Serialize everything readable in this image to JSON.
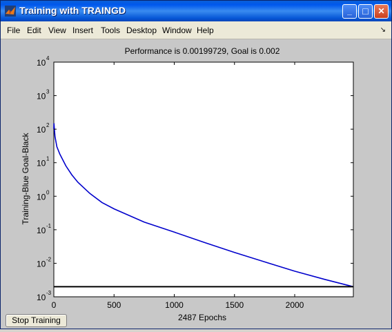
{
  "window": {
    "title": "Training with TRAINGD",
    "minimize_label": "_",
    "maximize_label": "□",
    "close_label": "✕"
  },
  "menu": {
    "items": [
      "File",
      "Edit",
      "View",
      "Insert",
      "Tools",
      "Desktop",
      "Window",
      "Help"
    ],
    "dock_label": "↘"
  },
  "chart": {
    "title": "Performance is 0.00199729, Goal is 0.002",
    "xlabel": "2487 Epochs",
    "ylabel": "Training-Blue  Goal-Black",
    "x_ticks": [
      "0",
      "500",
      "1000",
      "1500",
      "2000"
    ],
    "y_tick_bases": [
      "10",
      "10",
      "10",
      "10",
      "10",
      "10",
      "10",
      "10"
    ],
    "y_tick_exps": [
      "4",
      "3",
      "2",
      "1",
      "0",
      "-1",
      "-2",
      "-3"
    ]
  },
  "chart_data": {
    "type": "line",
    "title": "Performance is 0.00199729, Goal is 0.002",
    "xlabel": "2487 Epochs",
    "ylabel": "Training-Blue  Goal-Black",
    "xlim": [
      0,
      2487
    ],
    "ylim": [
      0.001,
      10000
    ],
    "yscale": "log",
    "grid": false,
    "series": [
      {
        "color": "#0000cc",
        "x": [
          0,
          1,
          3,
          10,
          25,
          50,
          100,
          150,
          200,
          300,
          400,
          500,
          750,
          1000,
          1250,
          1500,
          1750,
          2000,
          2250,
          2487
        ],
        "y": [
          100,
          150,
          120,
          60,
          30,
          18,
          8,
          4.3,
          2.6,
          1.2,
          0.65,
          0.42,
          0.17,
          0.085,
          0.042,
          0.021,
          0.011,
          0.0058,
          0.0033,
          0.00199729
        ]
      },
      {
        "color": "#000000",
        "x": [
          0,
          2487
        ],
        "y": [
          0.002,
          0.002
        ]
      }
    ]
  },
  "controls": {
    "stop_label": "Stop Training"
  }
}
